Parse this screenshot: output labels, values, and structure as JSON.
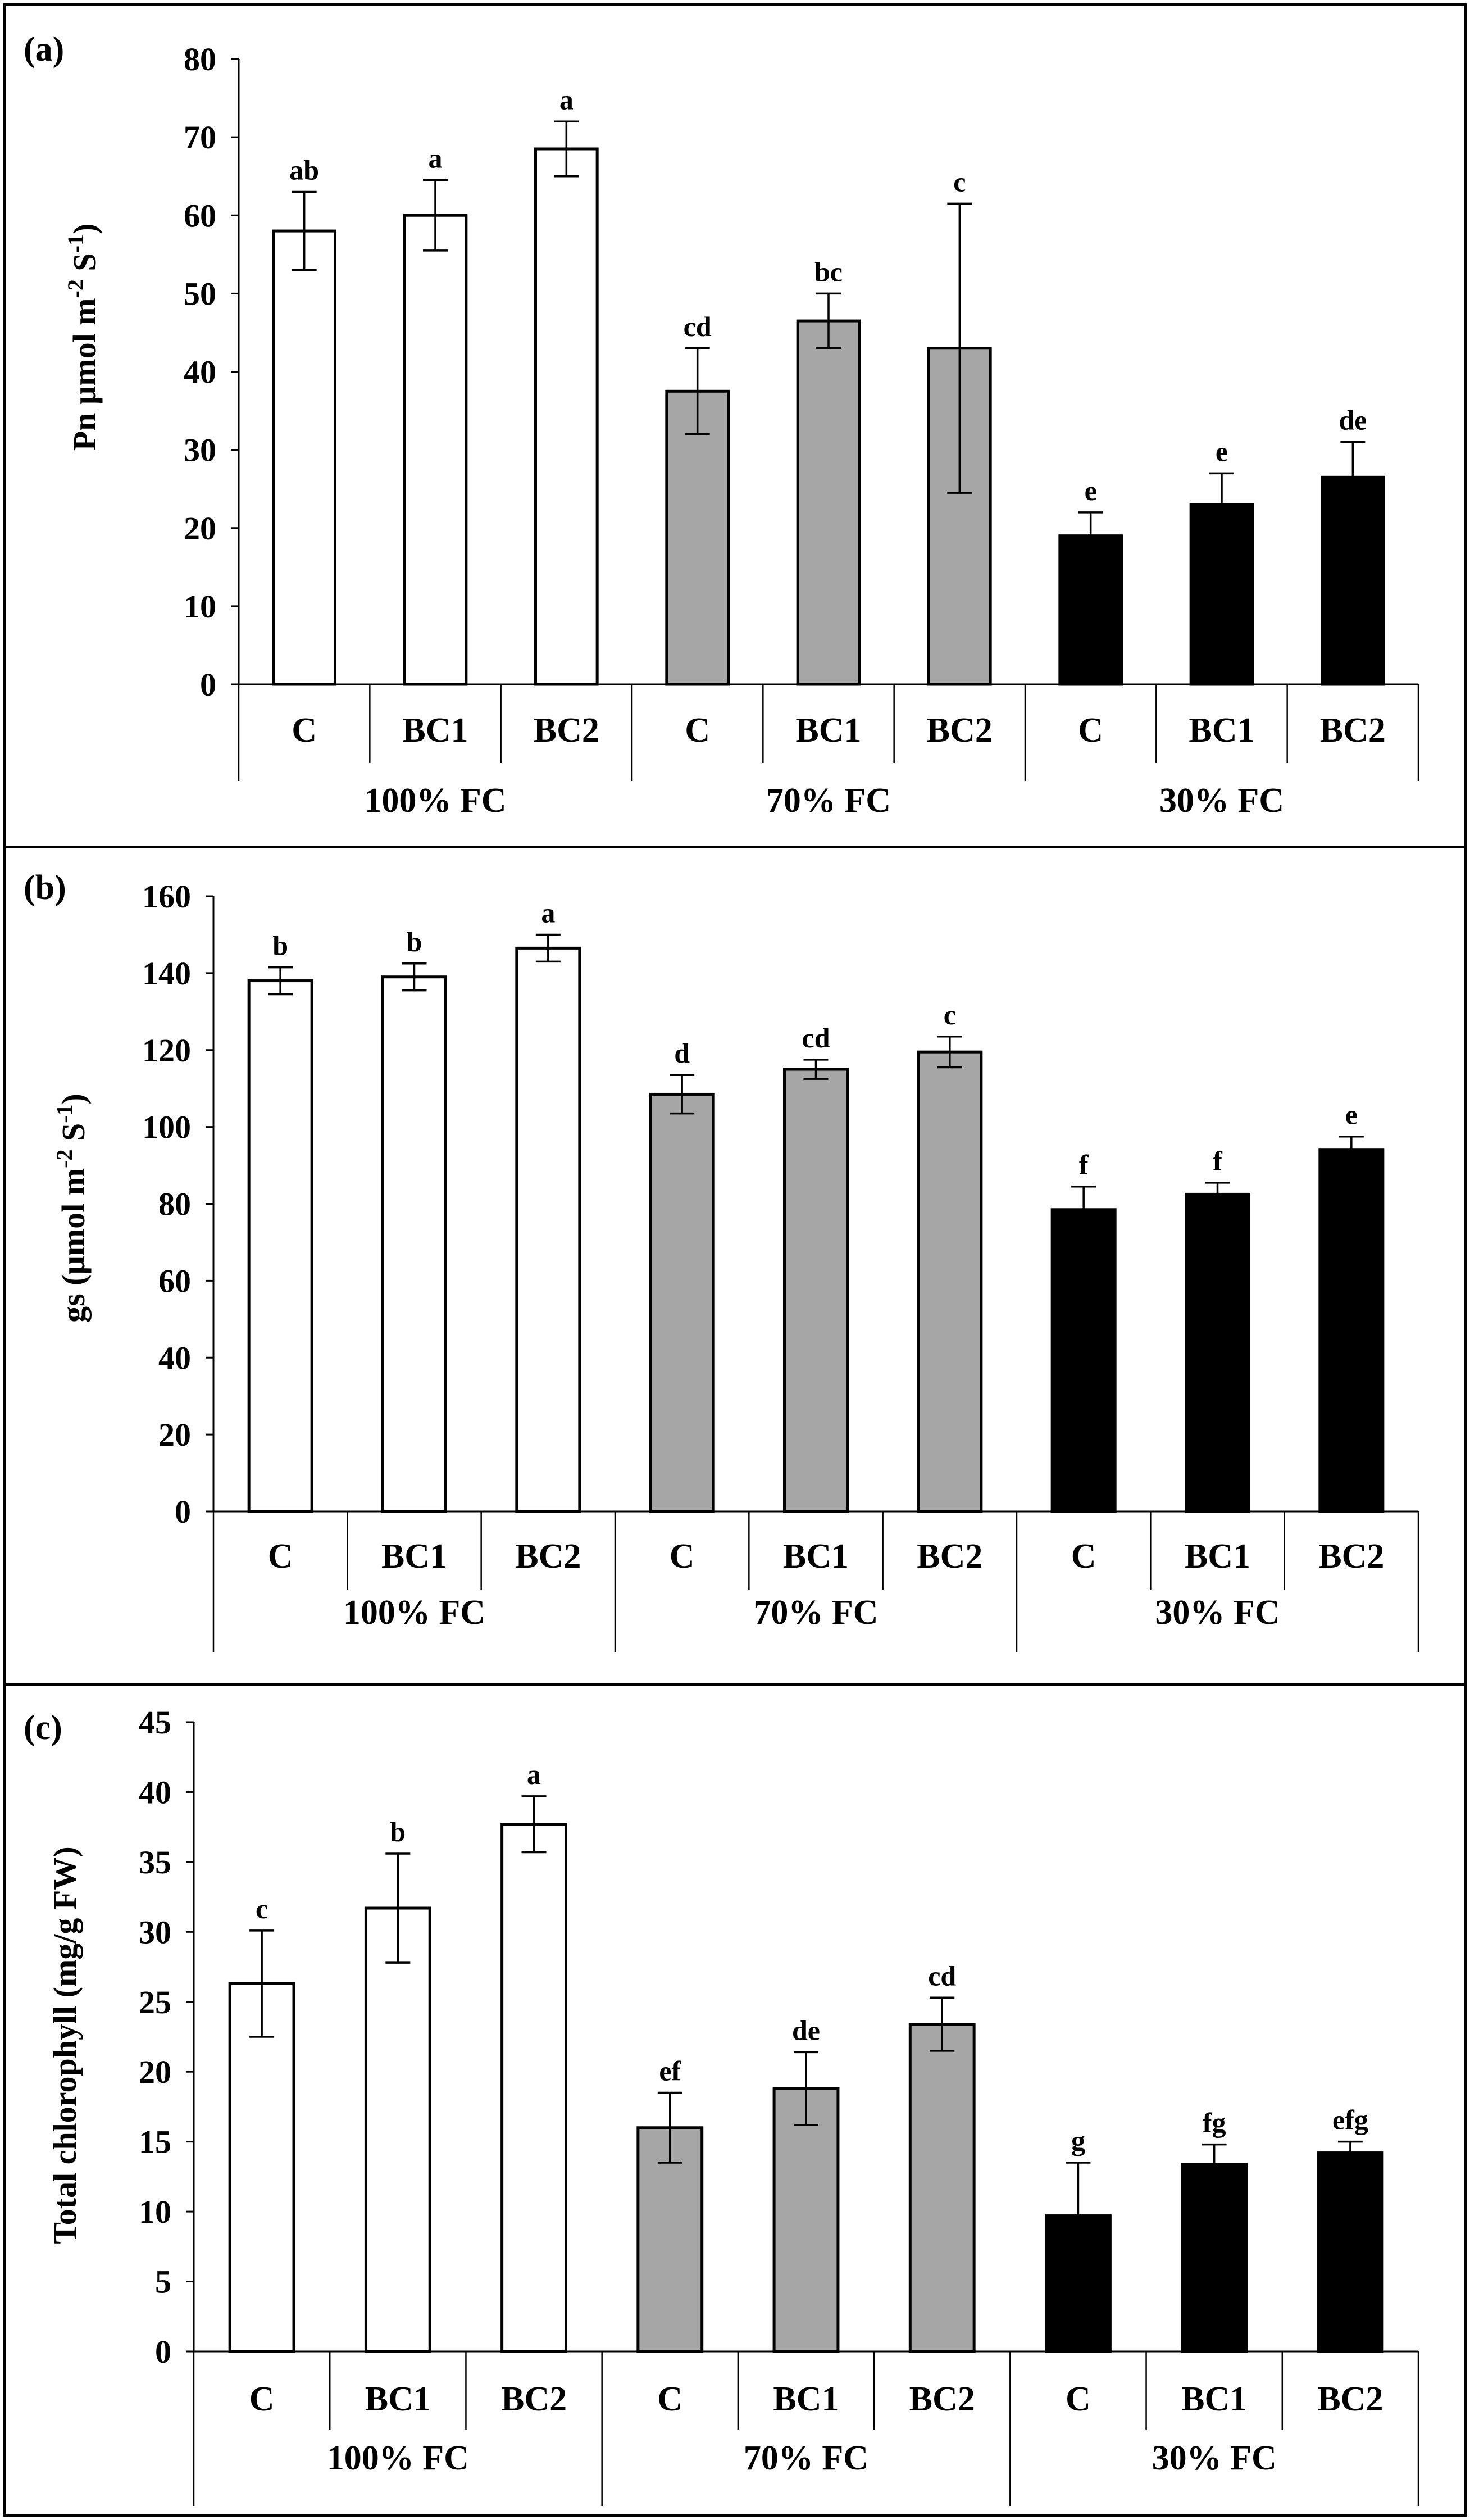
{
  "chart_data": [
    {
      "panel": "(a)",
      "type": "bar",
      "ylabel": "Pn µmol m-2 S-1",
      "ylabel_parts": [
        "Pn µmol m",
        "-2",
        " S",
        "-1",
        ")"
      ],
      "ylim": [
        0,
        80
      ],
      "yticks": [
        0,
        10,
        20,
        30,
        40,
        50,
        60,
        70,
        80
      ],
      "ytick_labels": [
        "0",
        "10",
        "20",
        "30",
        "40",
        "50",
        "60",
        "70",
        "80"
      ],
      "categories": [
        "C",
        "BC1",
        "BC2",
        "C",
        "BC1",
        "BC2",
        "C",
        "BC1",
        "BC2"
      ],
      "groups": [
        "100% FC",
        "70% FC",
        "30% FC"
      ],
      "values": [
        58,
        60,
        68.5,
        37.5,
        46.5,
        43,
        19,
        23,
        26.5
      ],
      "errors": [
        5,
        4.5,
        3.5,
        5.5,
        3.5,
        18.5,
        3,
        4,
        4.5
      ],
      "significance": [
        "ab",
        "a",
        "a",
        "cd",
        "bc",
        "c",
        "e",
        "e",
        "de"
      ]
    },
    {
      "panel": "(b)",
      "type": "bar",
      "ylabel": "gs (µmol m-2 S-1)",
      "ylabel_parts": [
        "gs  (µmol m",
        "-2",
        " S",
        "-1",
        ")"
      ],
      "ylim": [
        0,
        160
      ],
      "yticks": [
        0,
        20,
        40,
        60,
        80,
        100,
        120,
        140,
        160
      ],
      "ytick_labels": [
        "0",
        "20",
        "40",
        "60",
        "80",
        "100",
        "120",
        "140",
        "160"
      ],
      "categories": [
        "C",
        "BC1",
        "BC2",
        "C",
        "BC1",
        "BC2",
        "C",
        "BC1",
        "BC2"
      ],
      "groups": [
        "100% FC",
        "70% FC",
        "30% FC"
      ],
      "values": [
        138,
        139,
        146.5,
        108.5,
        115,
        119.5,
        78.5,
        82.5,
        94
      ],
      "errors": [
        3.5,
        3.5,
        3.5,
        5,
        2.5,
        4,
        6,
        3,
        3.5
      ],
      "significance": [
        "b",
        "b",
        "a",
        "d",
        "cd",
        "c",
        "f",
        "f",
        "e"
      ]
    },
    {
      "panel": "(c)",
      "type": "bar",
      "ylabel": "Total chlorophyll (mg/g FW)",
      "ylabel_parts": [
        "Total chlorophyll  (mg/g FW)"
      ],
      "ylim": [
        0,
        45
      ],
      "yticks": [
        0,
        5,
        10,
        15,
        20,
        25,
        30,
        35,
        40,
        45
      ],
      "ytick_labels": [
        "0",
        "5",
        "10",
        "15",
        "20",
        "25",
        "30",
        "35",
        "40",
        "45"
      ],
      "categories": [
        "C",
        "BC1",
        "BC2",
        "C",
        "BC1",
        "BC2",
        "C",
        "BC1",
        "BC2"
      ],
      "groups": [
        "100% FC",
        "70% FC",
        "30% FC"
      ],
      "values": [
        26.3,
        31.7,
        37.7,
        16,
        18.8,
        23.4,
        9.7,
        13.4,
        14.2
      ],
      "errors": [
        3.8,
        3.9,
        2,
        2.5,
        2.6,
        1.9,
        3.8,
        1.4,
        0.8
      ],
      "significance": [
        "c",
        "b",
        "a",
        "ef",
        "de",
        "cd",
        "g",
        "fg",
        "efg"
      ]
    }
  ],
  "colors": {
    "group_fills": [
      "#ffffff",
      "#a6a6a6",
      "#000000"
    ],
    "stroke": "#000000",
    "background": "#ffffff"
  }
}
